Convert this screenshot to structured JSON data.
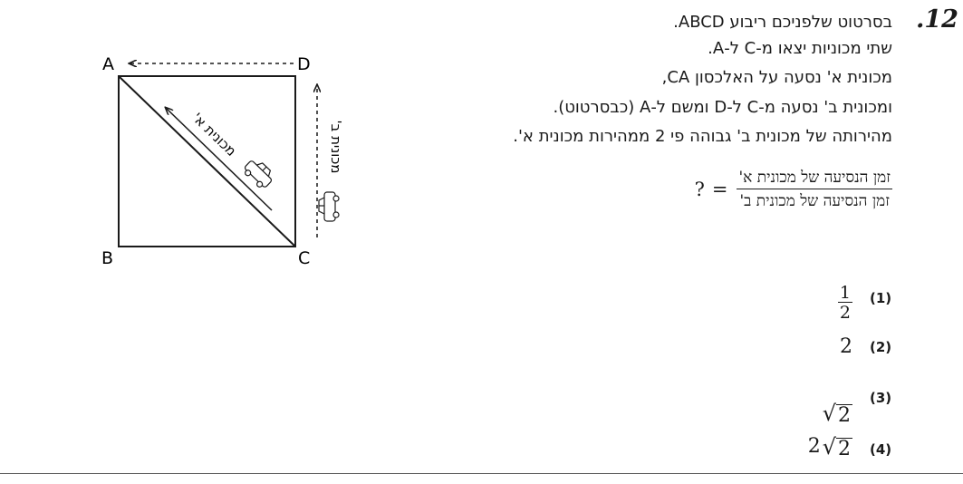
{
  "question": {
    "number": ".12",
    "lines": [
      "בסרטוט שלפניכם ריבוע ABCD.",
      "שתי מכוניות יצאו מ-C ל-A.",
      "מכונית א' נסעה על האלכסון CA,",
      "ומכונית ב' נסעה מ-C ל-D ומשם ל-A (כבסרטוט).",
      "מהירותה של מכונית ב' גבוהה פי 2 ממהירות מכונית א'."
    ],
    "fraction_numerator": "זמן הנסיעה של מכונית א'",
    "fraction_denominator": "זמן הנסיעה של מכונית ב'",
    "equals": "=",
    "question_mark": "?"
  },
  "diagram": {
    "labels": {
      "A": "A",
      "B": "B",
      "C": "C",
      "D": "D"
    },
    "car_a_label": "מכונית א'",
    "car_b_label": "מכונית ב'"
  },
  "options": [
    {
      "label": "(1)",
      "value": {
        "type": "fraction",
        "num": "1",
        "den": "2"
      }
    },
    {
      "label": "(2)",
      "value": {
        "type": "text",
        "text": "2"
      }
    },
    {
      "label": "(3)",
      "value": {
        "type": "sqrt",
        "coef": "",
        "radicand": "2"
      }
    },
    {
      "label": "(4)",
      "value": {
        "type": "sqrt",
        "coef": "2",
        "radicand": "2"
      }
    }
  ]
}
